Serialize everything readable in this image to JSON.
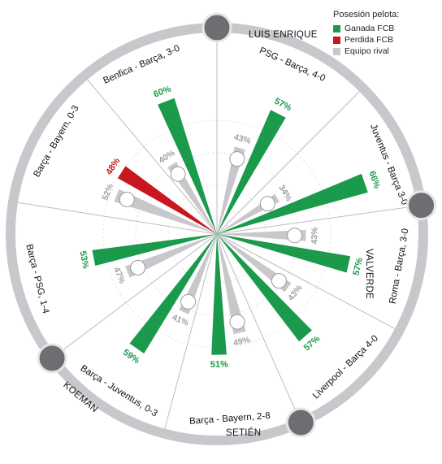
{
  "legend": {
    "title": "Posesión pelota:",
    "items": [
      {
        "label": "Ganada FCB",
        "color": "#1a9a4a"
      },
      {
        "label": "Perdida FCB",
        "color": "#c8171f"
      },
      {
        "label": "Equipo rival",
        "color": "#c8c8cc"
      }
    ]
  },
  "coaches": {
    "luis_enrique": "LUIS ENRIQUE",
    "valverde": "VALVERDE",
    "setien": "SETIÉN",
    "koeman": "KOEMAN"
  },
  "colors": {
    "win": "#1a9a4a",
    "loss": "#c8171f",
    "rival": "#c8c8cc",
    "ring": "#c8c8cc",
    "divider": "#bdbdbd",
    "grid": "#d9d9d9"
  },
  "chart_data": {
    "type": "radial-bar",
    "title": "",
    "matches": [
      {
        "label": "Benfica - Barça, 3-0",
        "coach": "luis_enrique",
        "rival_logo": "benfica-crest-icon",
        "fcb": 60,
        "rival": 40,
        "fcb_result": "win"
      },
      {
        "label": "PSG - Barça, 4-0",
        "coach": "luis_enrique",
        "rival_logo": "psg-crest-icon",
        "fcb": 57,
        "rival": 43,
        "fcb_result": "win"
      },
      {
        "label": "Juventus - Barça 3-0",
        "coach": "valverde",
        "rival_logo": "juventus-crest-icon",
        "fcb": 66,
        "rival": 34,
        "fcb_result": "win"
      },
      {
        "label": "Roma - Barça, 3-0",
        "coach": "valverde",
        "rival_logo": "roma-crest-icon",
        "fcb": 57,
        "rival": 43,
        "fcb_result": "win"
      },
      {
        "label": "Liverpool - Barça 4-0",
        "coach": "valverde",
        "rival_logo": "liverpool-crest-icon",
        "fcb": 57,
        "rival": 43,
        "fcb_result": "win"
      },
      {
        "label": "Barça - Bayern, 2-8",
        "coach": "setien",
        "rival_logo": "bayern-crest-icon",
        "fcb": 51,
        "rival": 49,
        "fcb_result": "win"
      },
      {
        "label": "Barça - Juventus, 0-3",
        "coach": "koeman",
        "rival_logo": "juventus-crest-icon",
        "fcb": 59,
        "rival": 41,
        "fcb_result": "win"
      },
      {
        "label": "Barça - PSG, 1-4",
        "coach": "koeman",
        "rival_logo": "psg-crest-icon",
        "fcb": 53,
        "rival": 47,
        "fcb_result": "win"
      },
      {
        "label": "Barça - Bayern, 0-3",
        "coach": "luis_enrique",
        "rival_logo": "bayern-crest-icon",
        "fcb": 48,
        "rival": 52,
        "fcb_result": "loss"
      }
    ],
    "value_unit": "%",
    "grid": true
  }
}
